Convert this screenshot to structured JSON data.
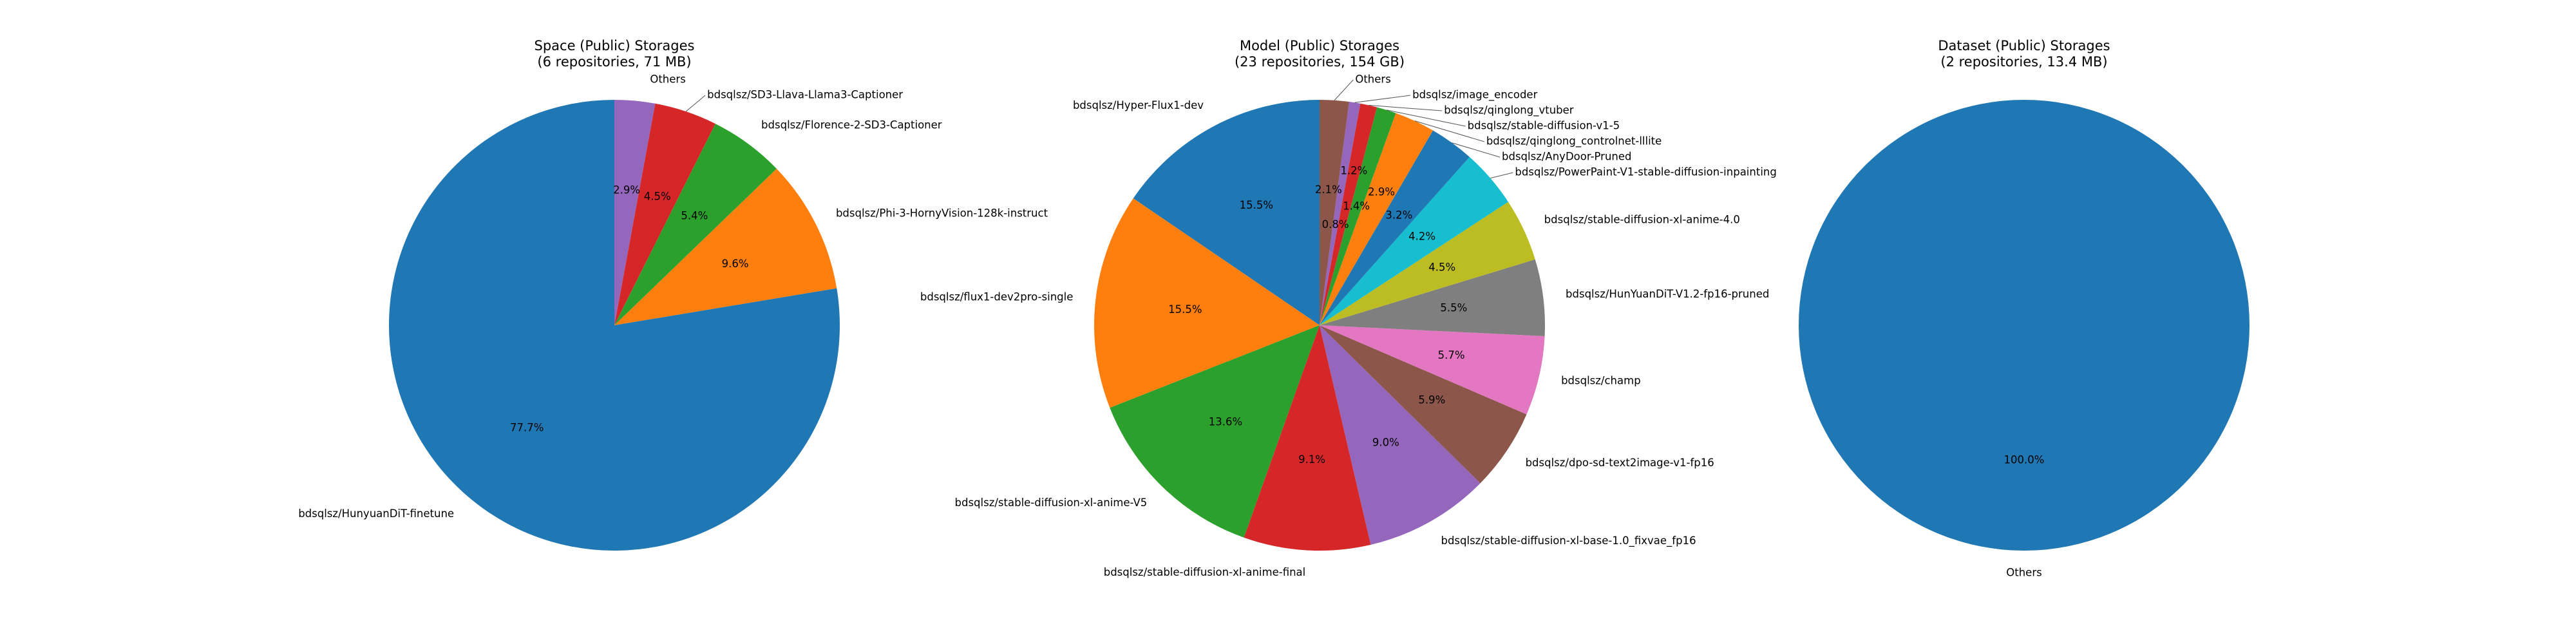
{
  "palette": [
    "#1f77b4",
    "#ff7f0e",
    "#2ca02c",
    "#d62728",
    "#9467bd",
    "#8c564b",
    "#e377c2",
    "#7f7f7f",
    "#bcbd22",
    "#17becf"
  ],
  "chart_data": [
    {
      "type": "pie",
      "title": "Space (Public) Storages",
      "subtitle": "(6 repositories, 71 MB)",
      "start_angle": 90,
      "direction": "counterclockwise",
      "labels": [
        "bdsqlsz/HunyuanDiT-finetune",
        "bdsqlsz/Phi-3-HornyVision-128k-instruct",
        "bdsqlsz/Florence-2-SD3-Captioner",
        "bdsqlsz/SD3-Llava-Llama3-Captioner",
        "Others"
      ],
      "values": [
        77.7,
        9.6,
        5.4,
        4.5,
        2.9
      ],
      "pct_labels": [
        "77.7%",
        "9.6%",
        "5.4%",
        "4.5%",
        "2.9%"
      ]
    },
    {
      "type": "pie",
      "title": "Model (Public) Storages",
      "subtitle": "(23 repositories, 154 GB)",
      "start_angle": 90,
      "direction": "counterclockwise",
      "labels": [
        "bdsqlsz/Hyper-Flux1-dev",
        "bdsqlsz/flux1-dev2pro-single",
        "bdsqlsz/stable-diffusion-xl-anime-V5",
        "bdsqlsz/stable-diffusion-xl-anime-final",
        "bdsqlsz/stable-diffusion-xl-base-1.0_fixvae_fp16",
        "bdsqlsz/dpo-sd-text2image-v1-fp16",
        "bdsqlsz/champ",
        "bdsqlsz/HunYuanDiT-V1.2-fp16-pruned",
        "bdsqlsz/stable-diffusion-xl-anime-4.0",
        "bdsqlsz/PowerPaint-V1-stable-diffusion-inpainting",
        "bdsqlsz/AnyDoor-Pruned",
        "bdsqlsz/qinglong_controlnet-lllite",
        "bdsqlsz/stable-diffusion-v1-5",
        "bdsqlsz/qinglong_vtuber",
        "bdsqlsz/image_encoder",
        "Others"
      ],
      "values": [
        15.5,
        15.5,
        13.6,
        9.1,
        9.0,
        5.9,
        5.7,
        5.5,
        4.5,
        4.2,
        3.2,
        2.9,
        1.4,
        1.2,
        0.8,
        2.1
      ],
      "pct_labels": [
        "15.5%",
        "15.5%",
        "13.6%",
        "9.1%",
        "9.0%",
        "5.9%",
        "5.7%",
        "5.5%",
        "4.5%",
        "4.2%",
        "3.2%",
        "2.9%",
        "1.4%",
        "1.2%",
        "0.8%",
        "2.1%"
      ]
    },
    {
      "type": "pie",
      "title": "Dataset (Public) Storages",
      "subtitle": "(2 repositories, 13.4 MB)",
      "start_angle": 90,
      "direction": "counterclockwise",
      "labels": [
        "Others"
      ],
      "values": [
        100.0
      ],
      "pct_labels": [
        "100.0%"
      ]
    }
  ]
}
